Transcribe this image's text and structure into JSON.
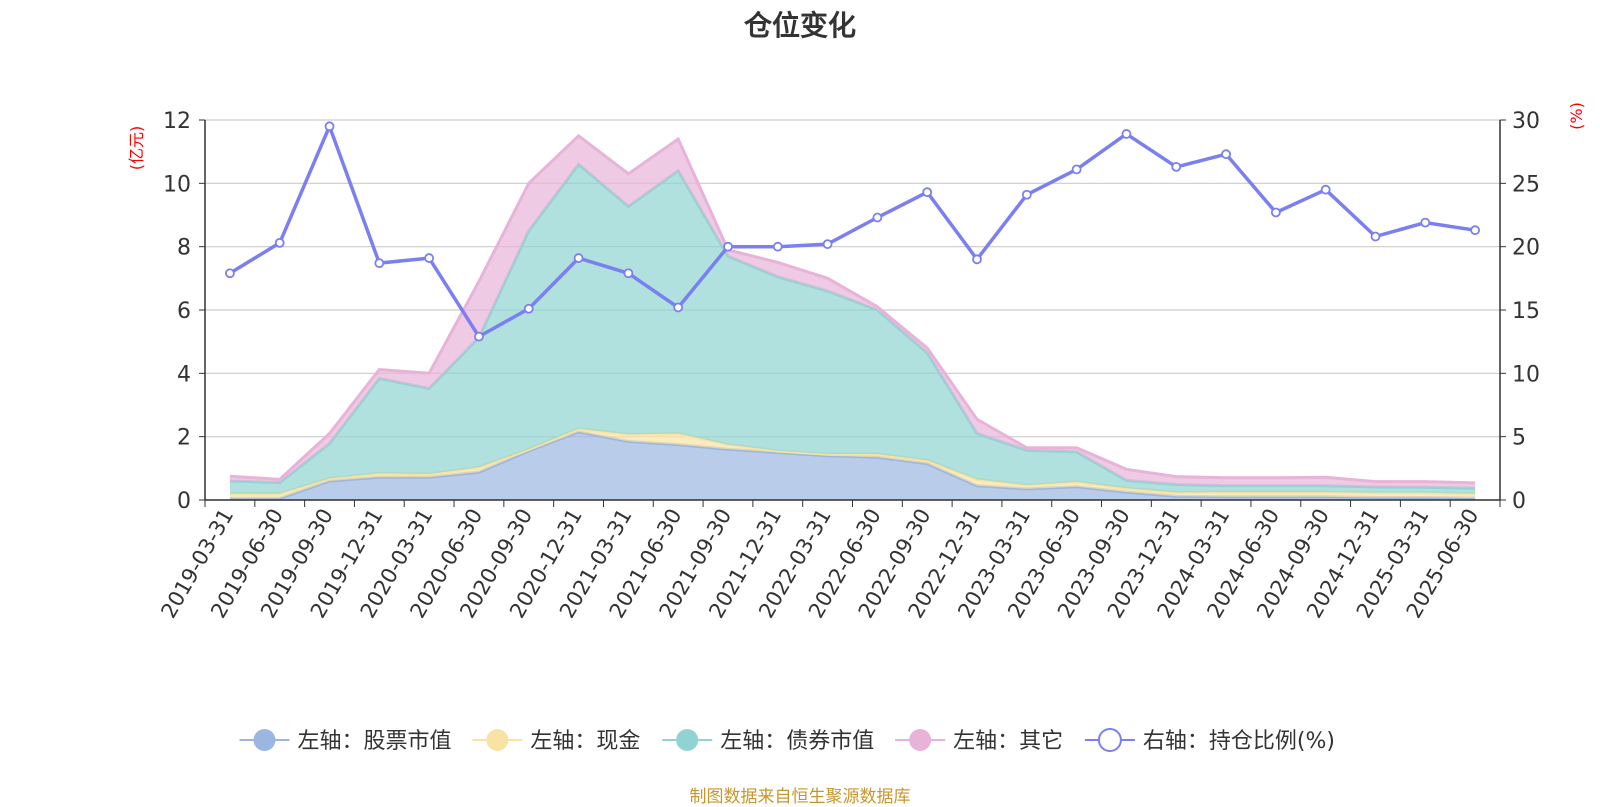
{
  "chart_data": {
    "type": "area",
    "title": "仓位变化",
    "left_axis_unit": "(亿元)",
    "right_axis_unit": "(%)",
    "left_ylim": [
      0,
      12
    ],
    "left_ticks": [
      0,
      2,
      4,
      6,
      8,
      10,
      12
    ],
    "right_ylim": [
      0,
      30
    ],
    "right_ticks": [
      0,
      5,
      10,
      15,
      20,
      25,
      30
    ],
    "grid": true,
    "legend_position": "bottom",
    "categories": [
      "2019-03-31",
      "2019-06-30",
      "2019-09-30",
      "2019-12-31",
      "2020-03-31",
      "2020-06-30",
      "2020-09-30",
      "2020-12-31",
      "2021-03-31",
      "2021-06-30",
      "2021-09-30",
      "2021-12-31",
      "2022-03-31",
      "2022-06-30",
      "2022-09-30",
      "2022-12-31",
      "2023-03-31",
      "2023-06-30",
      "2023-09-30",
      "2023-12-31",
      "2024-03-31",
      "2024-06-30",
      "2024-09-30",
      "2024-12-31",
      "2025-03-31",
      "2025-06-30"
    ],
    "series": [
      {
        "name": "左轴：股票市值",
        "axis": "left",
        "stacked": true,
        "color": "#9bb6e0",
        "values": [
          0.05,
          0.05,
          0.6,
          0.72,
          0.72,
          0.88,
          1.55,
          2.15,
          1.85,
          1.75,
          1.6,
          1.5,
          1.4,
          1.35,
          1.15,
          0.45,
          0.35,
          0.42,
          0.25,
          0.12,
          0.1,
          0.1,
          0.1,
          0.08,
          0.08,
          0.06
        ]
      },
      {
        "name": "左轴：现金",
        "axis": "left",
        "stacked": true,
        "color": "#f9e3a3",
        "values": [
          0.15,
          0.15,
          0.08,
          0.12,
          0.1,
          0.15,
          0.05,
          0.1,
          0.22,
          0.35,
          0.15,
          0.05,
          0.05,
          0.1,
          0.1,
          0.2,
          0.12,
          0.15,
          0.12,
          0.12,
          0.15,
          0.15,
          0.15,
          0.15,
          0.15,
          0.14
        ]
      },
      {
        "name": "左轴：债券市值",
        "axis": "left",
        "stacked": true,
        "color": "#8fd4d2",
        "values": [
          0.4,
          0.35,
          1.1,
          3.0,
          2.7,
          4.1,
          6.9,
          8.35,
          7.2,
          8.3,
          5.95,
          5.5,
          5.15,
          4.55,
          3.4,
          1.45,
          1.1,
          0.95,
          0.25,
          0.25,
          0.2,
          0.2,
          0.2,
          0.18,
          0.17,
          0.17
        ]
      },
      {
        "name": "左轴：其它",
        "axis": "left",
        "stacked": true,
        "color": "#e8b3d8",
        "values": [
          0.15,
          0.1,
          0.32,
          0.28,
          0.48,
          1.77,
          1.5,
          0.9,
          1.03,
          1.0,
          0.2,
          0.45,
          0.4,
          0.1,
          0.15,
          0.45,
          0.08,
          0.13,
          0.35,
          0.25,
          0.25,
          0.25,
          0.27,
          0.17,
          0.18,
          0.17
        ]
      },
      {
        "name": "右轴：持仓比例(%)",
        "axis": "right",
        "type": "line",
        "color": "#7b7ff0",
        "values": [
          17.9,
          20.3,
          29.5,
          18.7,
          19.1,
          12.9,
          15.1,
          19.1,
          17.9,
          15.2,
          20.0,
          20.0,
          20.2,
          22.3,
          24.3,
          19.0,
          24.1,
          26.1,
          28.9,
          26.3,
          27.3,
          22.7,
          24.5,
          20.8,
          21.9,
          21.3
        ]
      }
    ]
  },
  "source_note": "制图数据来自恒生聚源数据库"
}
